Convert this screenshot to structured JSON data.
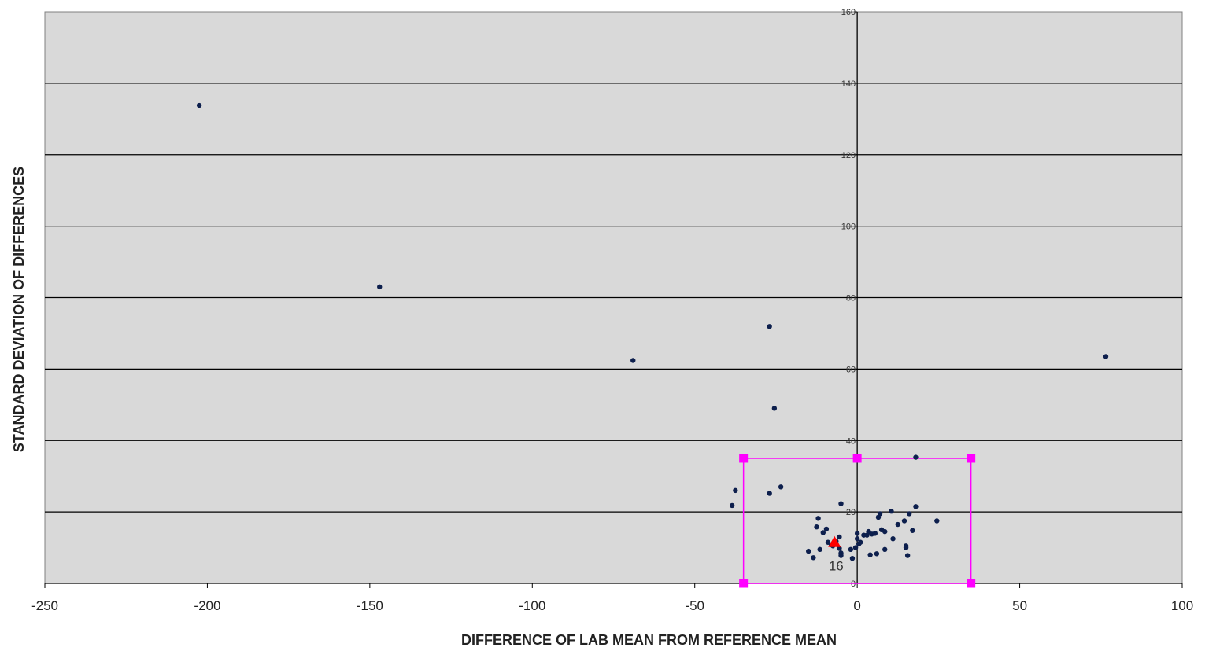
{
  "chart_data": {
    "type": "scatter",
    "title": "",
    "xlabel": "DIFFERENCE OF LAB MEAN FROM REFERENCE MEAN",
    "ylabel": "STANDARD DEVIATION OF DIFFERENCES",
    "xlim": [
      -250,
      100
    ],
    "ylim": [
      0,
      160
    ],
    "xticks": [
      -250,
      -200,
      -150,
      -100,
      -50,
      0,
      50,
      100
    ],
    "yticks": [
      0,
      20,
      40,
      60,
      80,
      100,
      120,
      140,
      160
    ],
    "grid": "horizontal",
    "colors": {
      "plot_bg": "#d9d9d9",
      "grid": "#000000",
      "points": "#0d1f4d",
      "highlight": "#ff0000",
      "box": "#ff00ff"
    },
    "series": [
      {
        "points": [
          [
            -202.5,
            133.8
          ],
          [
            -147,
            83
          ],
          [
            -69,
            62.4
          ],
          [
            -27,
            71.9
          ],
          [
            -25.5,
            49
          ],
          [
            76.5,
            63.5
          ],
          [
            -37.5,
            26
          ],
          [
            -38.5,
            21.8
          ],
          [
            -27,
            25.2
          ],
          [
            -23.5,
            27
          ],
          [
            18,
            35.3
          ],
          [
            18,
            21.5
          ],
          [
            -5,
            22.3
          ],
          [
            -12,
            18.2
          ],
          [
            -12.5,
            15.8
          ],
          [
            -10.5,
            14.2
          ],
          [
            -9.5,
            15.2
          ],
          [
            -9,
            11.5
          ],
          [
            -8,
            10.8
          ],
          [
            -7.5,
            10.5
          ],
          [
            -6.5,
            11.8
          ],
          [
            -5.5,
            13
          ],
          [
            -5.5,
            9.8
          ],
          [
            -5,
            8.5
          ],
          [
            -5,
            7.8
          ],
          [
            -11.5,
            9.5
          ],
          [
            -13.5,
            7.2
          ],
          [
            -15,
            9
          ],
          [
            -2,
            9.5
          ],
          [
            -1.5,
            7
          ],
          [
            -0.5,
            10
          ],
          [
            0,
            12.5
          ],
          [
            0,
            14
          ],
          [
            0.5,
            11
          ],
          [
            1,
            11.5
          ],
          [
            2,
            13.5
          ],
          [
            3,
            13.5
          ],
          [
            3.5,
            14.5
          ],
          [
            4,
            8
          ],
          [
            4.5,
            13.8
          ],
          [
            5.5,
            14
          ],
          [
            6,
            8.3
          ],
          [
            6.5,
            18.5
          ],
          [
            7,
            19.5
          ],
          [
            7.5,
            15
          ],
          [
            8.5,
            14.5
          ],
          [
            8.5,
            9.5
          ],
          [
            10.5,
            20.2
          ],
          [
            11,
            12.5
          ],
          [
            12.5,
            16.5
          ],
          [
            14.5,
            17.5
          ],
          [
            15,
            10.5
          ],
          [
            15.5,
            7.8
          ],
          [
            16,
            19.5
          ],
          [
            17,
            14.8
          ],
          [
            24.5,
            17.5
          ],
          [
            15,
            10
          ]
        ]
      }
    ],
    "highlight_point": [
      -7,
      11.5
    ],
    "annotation": {
      "text": "16",
      "x": -6.5,
      "y": 5
    },
    "box": {
      "x1": -35,
      "x2": 35,
      "y1": 0,
      "y2": 35
    },
    "box_markers": [
      [
        -35,
        35
      ],
      [
        0,
        35
      ],
      [
        35,
        35
      ],
      [
        -35,
        0
      ],
      [
        35,
        0
      ]
    ]
  }
}
